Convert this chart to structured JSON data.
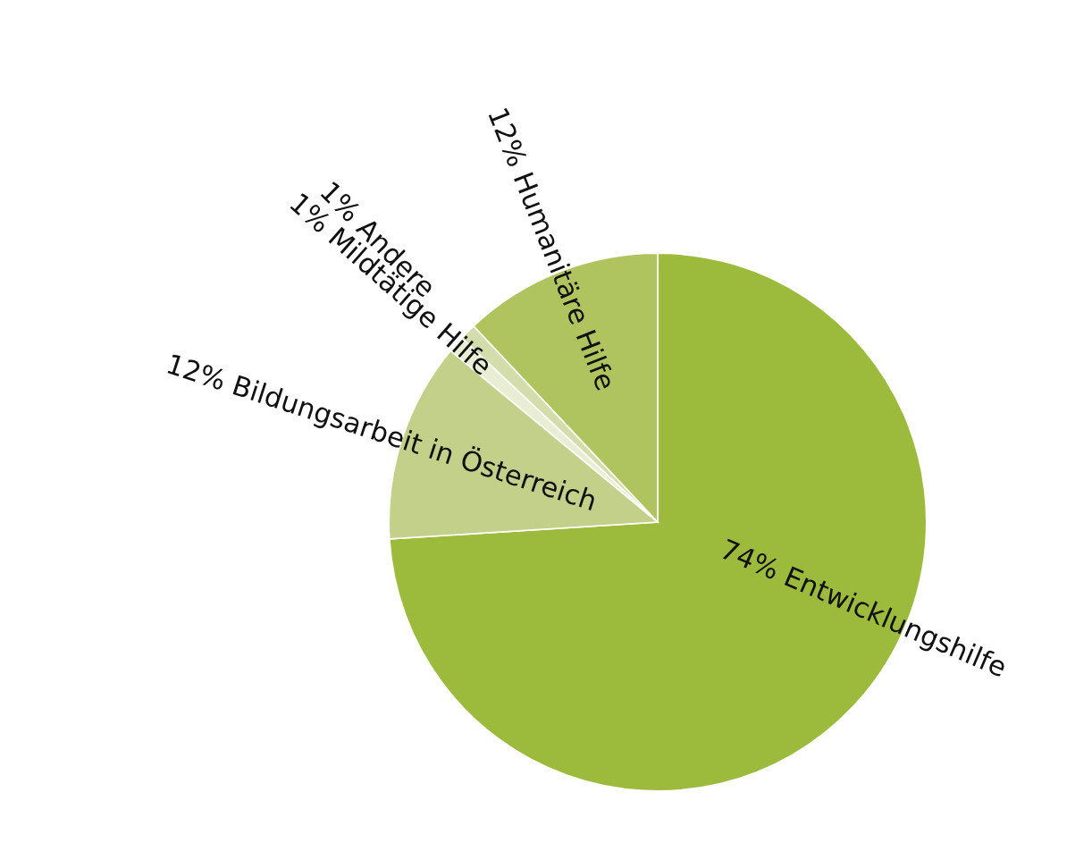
{
  "chart_data": {
    "type": "pie",
    "categories": [
      "74% Entwicklungshilfe",
      "12% Bildungsarbeit in Österreich",
      "1% Mildtätige Hilfe",
      "1% Andere",
      "12% Humanitäre Hilfe"
    ],
    "values": [
      74,
      12,
      1,
      1,
      12
    ],
    "colors": [
      "#9cba3c",
      "#c3d08a",
      "#e8edd4",
      "#d3ddab",
      "#afc45e"
    ]
  }
}
